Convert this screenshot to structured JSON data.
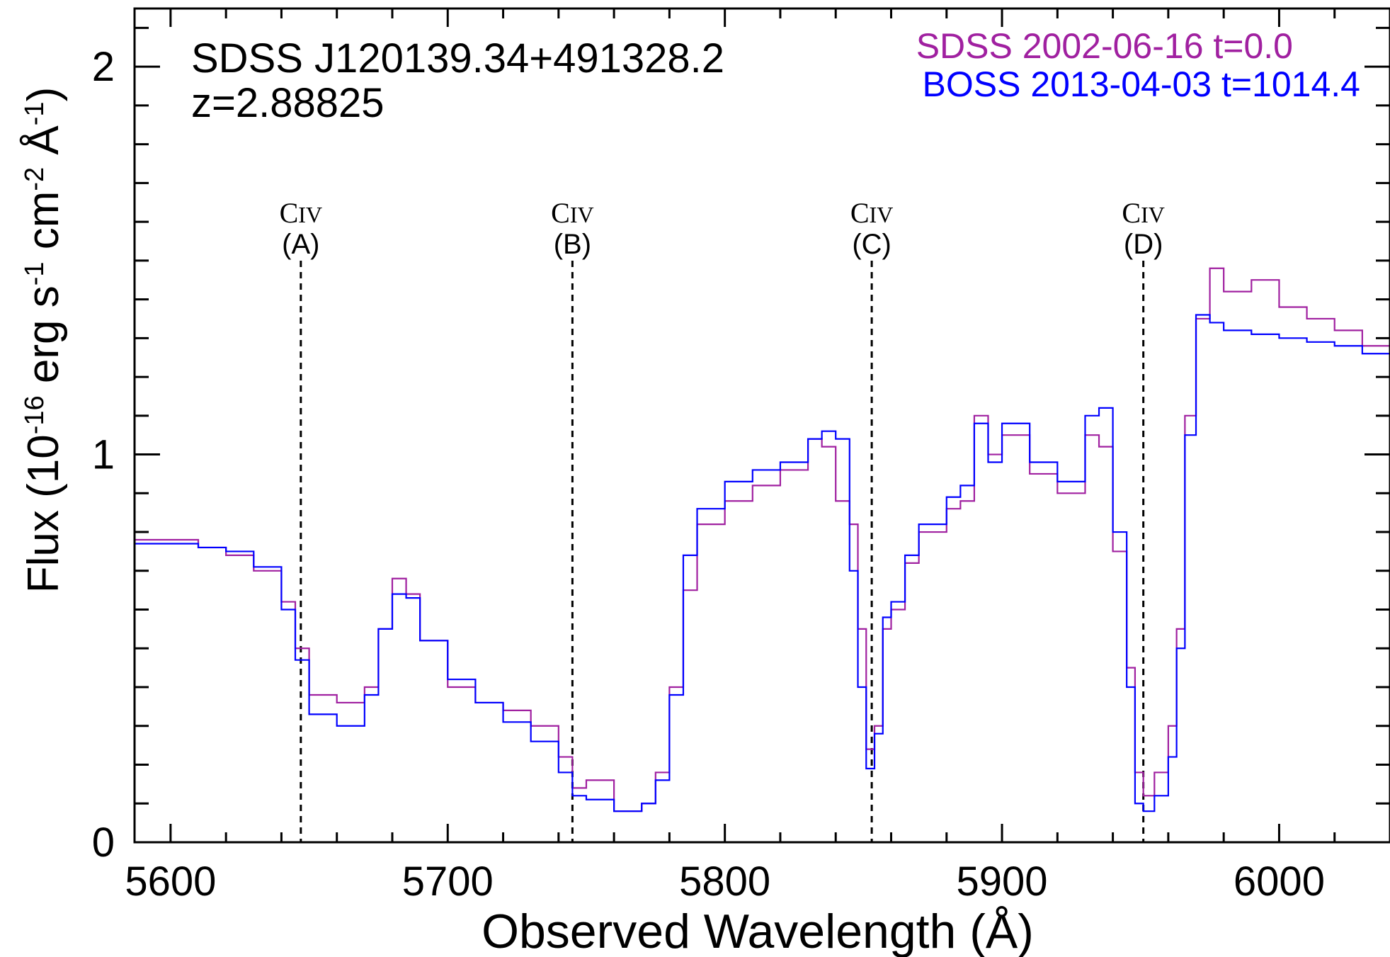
{
  "chart_data": {
    "type": "line",
    "title": "SDSS J120139.34+491328.2",
    "subtitle": "z=2.88825",
    "xlabel": "Observed Wavelength (Å)",
    "ylabel_parts": {
      "main": "Flux (10",
      "exp1": "-16",
      "unit1": " erg s",
      "exp2": "-1",
      "unit2": " cm",
      "exp3": "-2",
      "unit3": " Å",
      "exp4": "-1",
      "close": ")"
    },
    "xlim": [
      5587,
      6040
    ],
    "ylim": [
      0,
      2.15
    ],
    "x_ticks": [
      "5600",
      "5700",
      "5800",
      "5900",
      "6000"
    ],
    "y_ticks": [
      "0",
      "1",
      "2"
    ],
    "grid": false,
    "legend_position": "top-right",
    "series": [
      {
        "name": "SDSS 2002-06-16  t=0.0",
        "color": "#a020a0",
        "step": true,
        "x": [
          5587,
          5600,
          5610,
          5620,
          5630,
          5640,
          5645,
          5650,
          5660,
          5670,
          5675,
          5680,
          5685,
          5690,
          5700,
          5710,
          5720,
          5730,
          5740,
          5745,
          5750,
          5760,
          5770,
          5775,
          5780,
          5785,
          5790,
          5800,
          5810,
          5820,
          5830,
          5835,
          5840,
          5845,
          5848,
          5851,
          5854,
          5857,
          5860,
          5865,
          5870,
          5880,
          5885,
          5890,
          5895,
          5900,
          5910,
          5920,
          5930,
          5935,
          5940,
          5945,
          5948,
          5951,
          5955,
          5960,
          5963,
          5966,
          5970,
          5975,
          5980,
          5990,
          6000,
          6010,
          6020,
          6030,
          6040
        ],
        "y": [
          0.78,
          0.78,
          0.76,
          0.74,
          0.7,
          0.62,
          0.5,
          0.38,
          0.36,
          0.4,
          0.55,
          0.68,
          0.64,
          0.52,
          0.4,
          0.36,
          0.34,
          0.3,
          0.22,
          0.14,
          0.16,
          0.08,
          0.1,
          0.18,
          0.4,
          0.65,
          0.82,
          0.88,
          0.92,
          0.96,
          1.04,
          1.02,
          0.88,
          0.82,
          0.55,
          0.24,
          0.3,
          0.55,
          0.6,
          0.72,
          0.8,
          0.86,
          0.88,
          1.1,
          1.0,
          1.05,
          0.95,
          0.9,
          1.05,
          1.02,
          0.75,
          0.45,
          0.18,
          0.12,
          0.18,
          0.3,
          0.55,
          1.1,
          1.35,
          1.48,
          1.42,
          1.45,
          1.38,
          1.35,
          1.32,
          1.28,
          1.3
        ]
      },
      {
        "name": "BOSS 2013-04-03  t=1014.4",
        "color": "#0000ff",
        "step": true,
        "x": [
          5587,
          5600,
          5610,
          5620,
          5630,
          5640,
          5645,
          5650,
          5660,
          5670,
          5675,
          5680,
          5685,
          5690,
          5700,
          5710,
          5720,
          5730,
          5740,
          5745,
          5750,
          5760,
          5770,
          5775,
          5780,
          5785,
          5790,
          5800,
          5810,
          5820,
          5830,
          5835,
          5840,
          5845,
          5848,
          5851,
          5854,
          5857,
          5860,
          5865,
          5870,
          5880,
          5885,
          5890,
          5895,
          5900,
          5910,
          5920,
          5930,
          5935,
          5940,
          5945,
          5948,
          5951,
          5955,
          5960,
          5963,
          5966,
          5970,
          5975,
          5980,
          5990,
          6000,
          6010,
          6020,
          6030,
          6040
        ],
        "y": [
          0.77,
          0.77,
          0.76,
          0.75,
          0.71,
          0.6,
          0.47,
          0.33,
          0.3,
          0.38,
          0.55,
          0.64,
          0.63,
          0.52,
          0.42,
          0.36,
          0.31,
          0.26,
          0.18,
          0.12,
          0.11,
          0.08,
          0.1,
          0.16,
          0.38,
          0.74,
          0.86,
          0.93,
          0.96,
          0.98,
          1.04,
          1.06,
          1.04,
          0.7,
          0.4,
          0.19,
          0.28,
          0.58,
          0.62,
          0.74,
          0.82,
          0.89,
          0.92,
          1.08,
          0.98,
          1.08,
          0.98,
          0.93,
          1.1,
          1.12,
          0.8,
          0.4,
          0.1,
          0.08,
          0.12,
          0.22,
          0.5,
          1.05,
          1.36,
          1.34,
          1.32,
          1.31,
          1.3,
          1.29,
          1.28,
          1.26,
          1.3
        ]
      }
    ],
    "annotations": [
      {
        "ion": "C",
        "stage": "IV",
        "label": "(A)",
        "x": 5647
      },
      {
        "ion": "C",
        "stage": "IV",
        "label": "(B)",
        "x": 5745
      },
      {
        "ion": "C",
        "stage": "IV",
        "label": "(C)",
        "x": 5853
      },
      {
        "ion": "C",
        "stage": "IV",
        "label": "(D)",
        "x": 5951
      }
    ]
  }
}
